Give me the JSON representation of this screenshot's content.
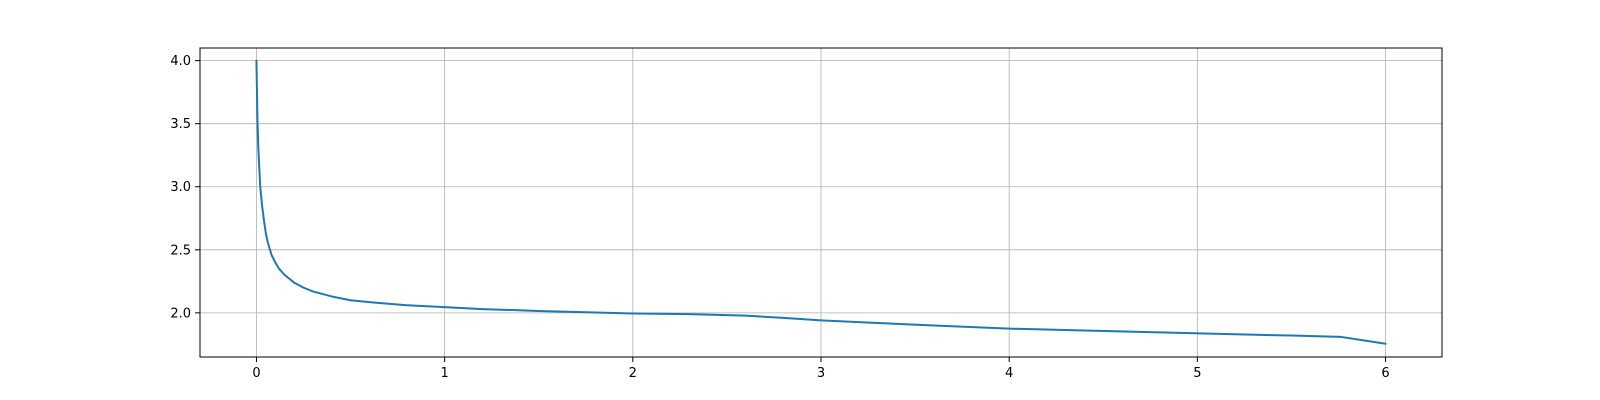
{
  "chart_data": {
    "type": "line",
    "title": "",
    "xlabel": "",
    "ylabel": "",
    "xlim": [
      -0.3,
      6.3
    ],
    "ylim": [
      1.65,
      4.1
    ],
    "grid": true,
    "x_ticks": [
      0,
      1,
      2,
      3,
      4,
      5,
      6
    ],
    "y_ticks": [
      2.0,
      2.5,
      3.0,
      3.5,
      4.0
    ],
    "x_tick_labels": [
      "0",
      "1",
      "2",
      "3",
      "4",
      "5",
      "6"
    ],
    "y_tick_labels": [
      "2.0",
      "2.5",
      "3.0",
      "3.5",
      "4.0"
    ],
    "series": [
      {
        "color": "#1f77b4",
        "x": [
          0,
          0.005,
          0.01,
          0.02,
          0.03,
          0.04,
          0.05,
          0.06,
          0.08,
          0.1,
          0.12,
          0.15,
          0.2,
          0.25,
          0.3,
          0.4,
          0.5,
          0.6,
          0.8,
          1.0,
          1.2,
          1.5,
          2.0,
          2.3,
          2.6,
          2.8,
          3.0,
          3.3,
          3.6,
          4.0,
          4.4,
          4.8,
          5.2,
          5.5,
          5.76,
          6.0
        ],
        "y": [
          4.0,
          3.55,
          3.3,
          3.0,
          2.85,
          2.73,
          2.63,
          2.56,
          2.46,
          2.4,
          2.35,
          2.3,
          2.24,
          2.2,
          2.17,
          2.13,
          2.1,
          2.085,
          2.06,
          2.045,
          2.03,
          2.015,
          1.995,
          1.99,
          1.978,
          1.96,
          1.94,
          1.92,
          1.9,
          1.875,
          1.86,
          1.845,
          1.83,
          1.82,
          1.81,
          1.755
        ]
      }
    ]
  }
}
